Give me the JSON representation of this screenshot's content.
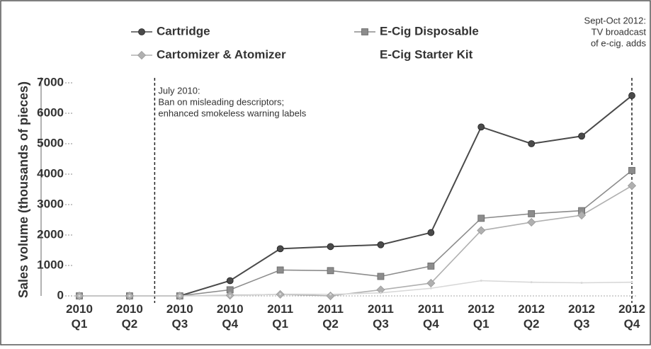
{
  "chart_data": {
    "type": "line",
    "y_label": "Sales volume (thousands of pieces)",
    "categories": [
      "2010 Q1",
      "2010 Q2",
      "2010 Q3",
      "2010 Q4",
      "2011 Q1",
      "2011 Q2",
      "2011 Q3",
      "2011 Q4",
      "2012 Q1",
      "2012 Q2",
      "2012 Q3",
      "2012 Q4"
    ],
    "series": [
      {
        "name": "Cartridge",
        "color": "#4a4a4a",
        "marker": "circle",
        "values": [
          0,
          0,
          0,
          500,
          1550,
          1620,
          1680,
          2080,
          5550,
          5000,
          5250,
          6580
        ]
      },
      {
        "name": "E-Cig Disposable",
        "color": "#8c8c8c",
        "marker": "square",
        "values": [
          0,
          0,
          0,
          200,
          850,
          830,
          640,
          980,
          2550,
          2700,
          2800,
          4120
        ]
      },
      {
        "name": "Cartomizer & Atomizer",
        "color": "#b0b0b0",
        "marker": "diamond",
        "values": [
          0,
          0,
          0,
          20,
          50,
          0,
          200,
          420,
          2150,
          2420,
          2650,
          3620
        ]
      },
      {
        "name": "E-Cig Starter Kit",
        "color": "#d8d8d8",
        "values": [
          0,
          0,
          0,
          0,
          60,
          50,
          100,
          250,
          500,
          450,
          430,
          450
        ]
      }
    ],
    "ylim": [
      0,
      7000
    ],
    "yticks": [
      0,
      1000,
      2000,
      3000,
      4000,
      5000,
      6000,
      7000
    ],
    "annotations": [
      {
        "lines": [
          "July 2010:",
          "Ban on misleading descriptors;",
          "enhanced smokeless warning labels"
        ]
      },
      {
        "lines": [
          "Sept-Oct 2012:",
          "TV broadcast",
          "of e-cig. adds"
        ]
      }
    ]
  }
}
